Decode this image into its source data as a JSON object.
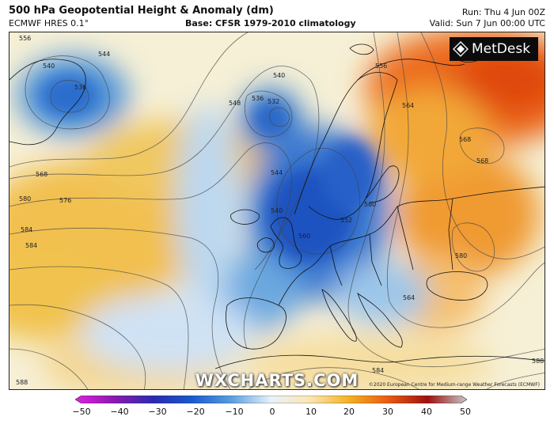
{
  "header": {
    "title": "500 hPa Geopotential Height & Anomaly (dm)",
    "model": "ECMWF HRES 0.1°",
    "base": "Base: CFSR 1979-2010 climatology",
    "run": "Run: Thu 4 Jun 00Z",
    "valid": "Valid: Sun 7 Jun 00:00 UTC"
  },
  "logo": {
    "text": "MetDesk",
    "icon": "metdesk-logo-icon"
  },
  "watermark": "WXCHARTS.COM",
  "copyright": "©2020 European Centre for Medium-range Weather Forecasts (ECMWF)",
  "contour_labels": [
    "556",
    "544",
    "540",
    "536",
    "540",
    "532",
    "536",
    "548",
    "544",
    "540",
    "556",
    "564",
    "568",
    "576",
    "580",
    "584",
    "568",
    "560",
    "552",
    "560",
    "580",
    "564",
    "588",
    "584",
    "588",
    "568",
    "584"
  ],
  "colorbar": {
    "ticks": [
      "−50",
      "−40",
      "−30",
      "−20",
      "−10",
      "0",
      "10",
      "20",
      "30",
      "40",
      "50"
    ],
    "colors": [
      "#e020e0",
      "#8a1ab0",
      "#2a2ab0",
      "#1a5ad0",
      "#5aa0e0",
      "#e8f2fa",
      "#fbe6b0",
      "#f5b020",
      "#ea5a10",
      "#a01010",
      "#c8c8c8"
    ]
  }
}
